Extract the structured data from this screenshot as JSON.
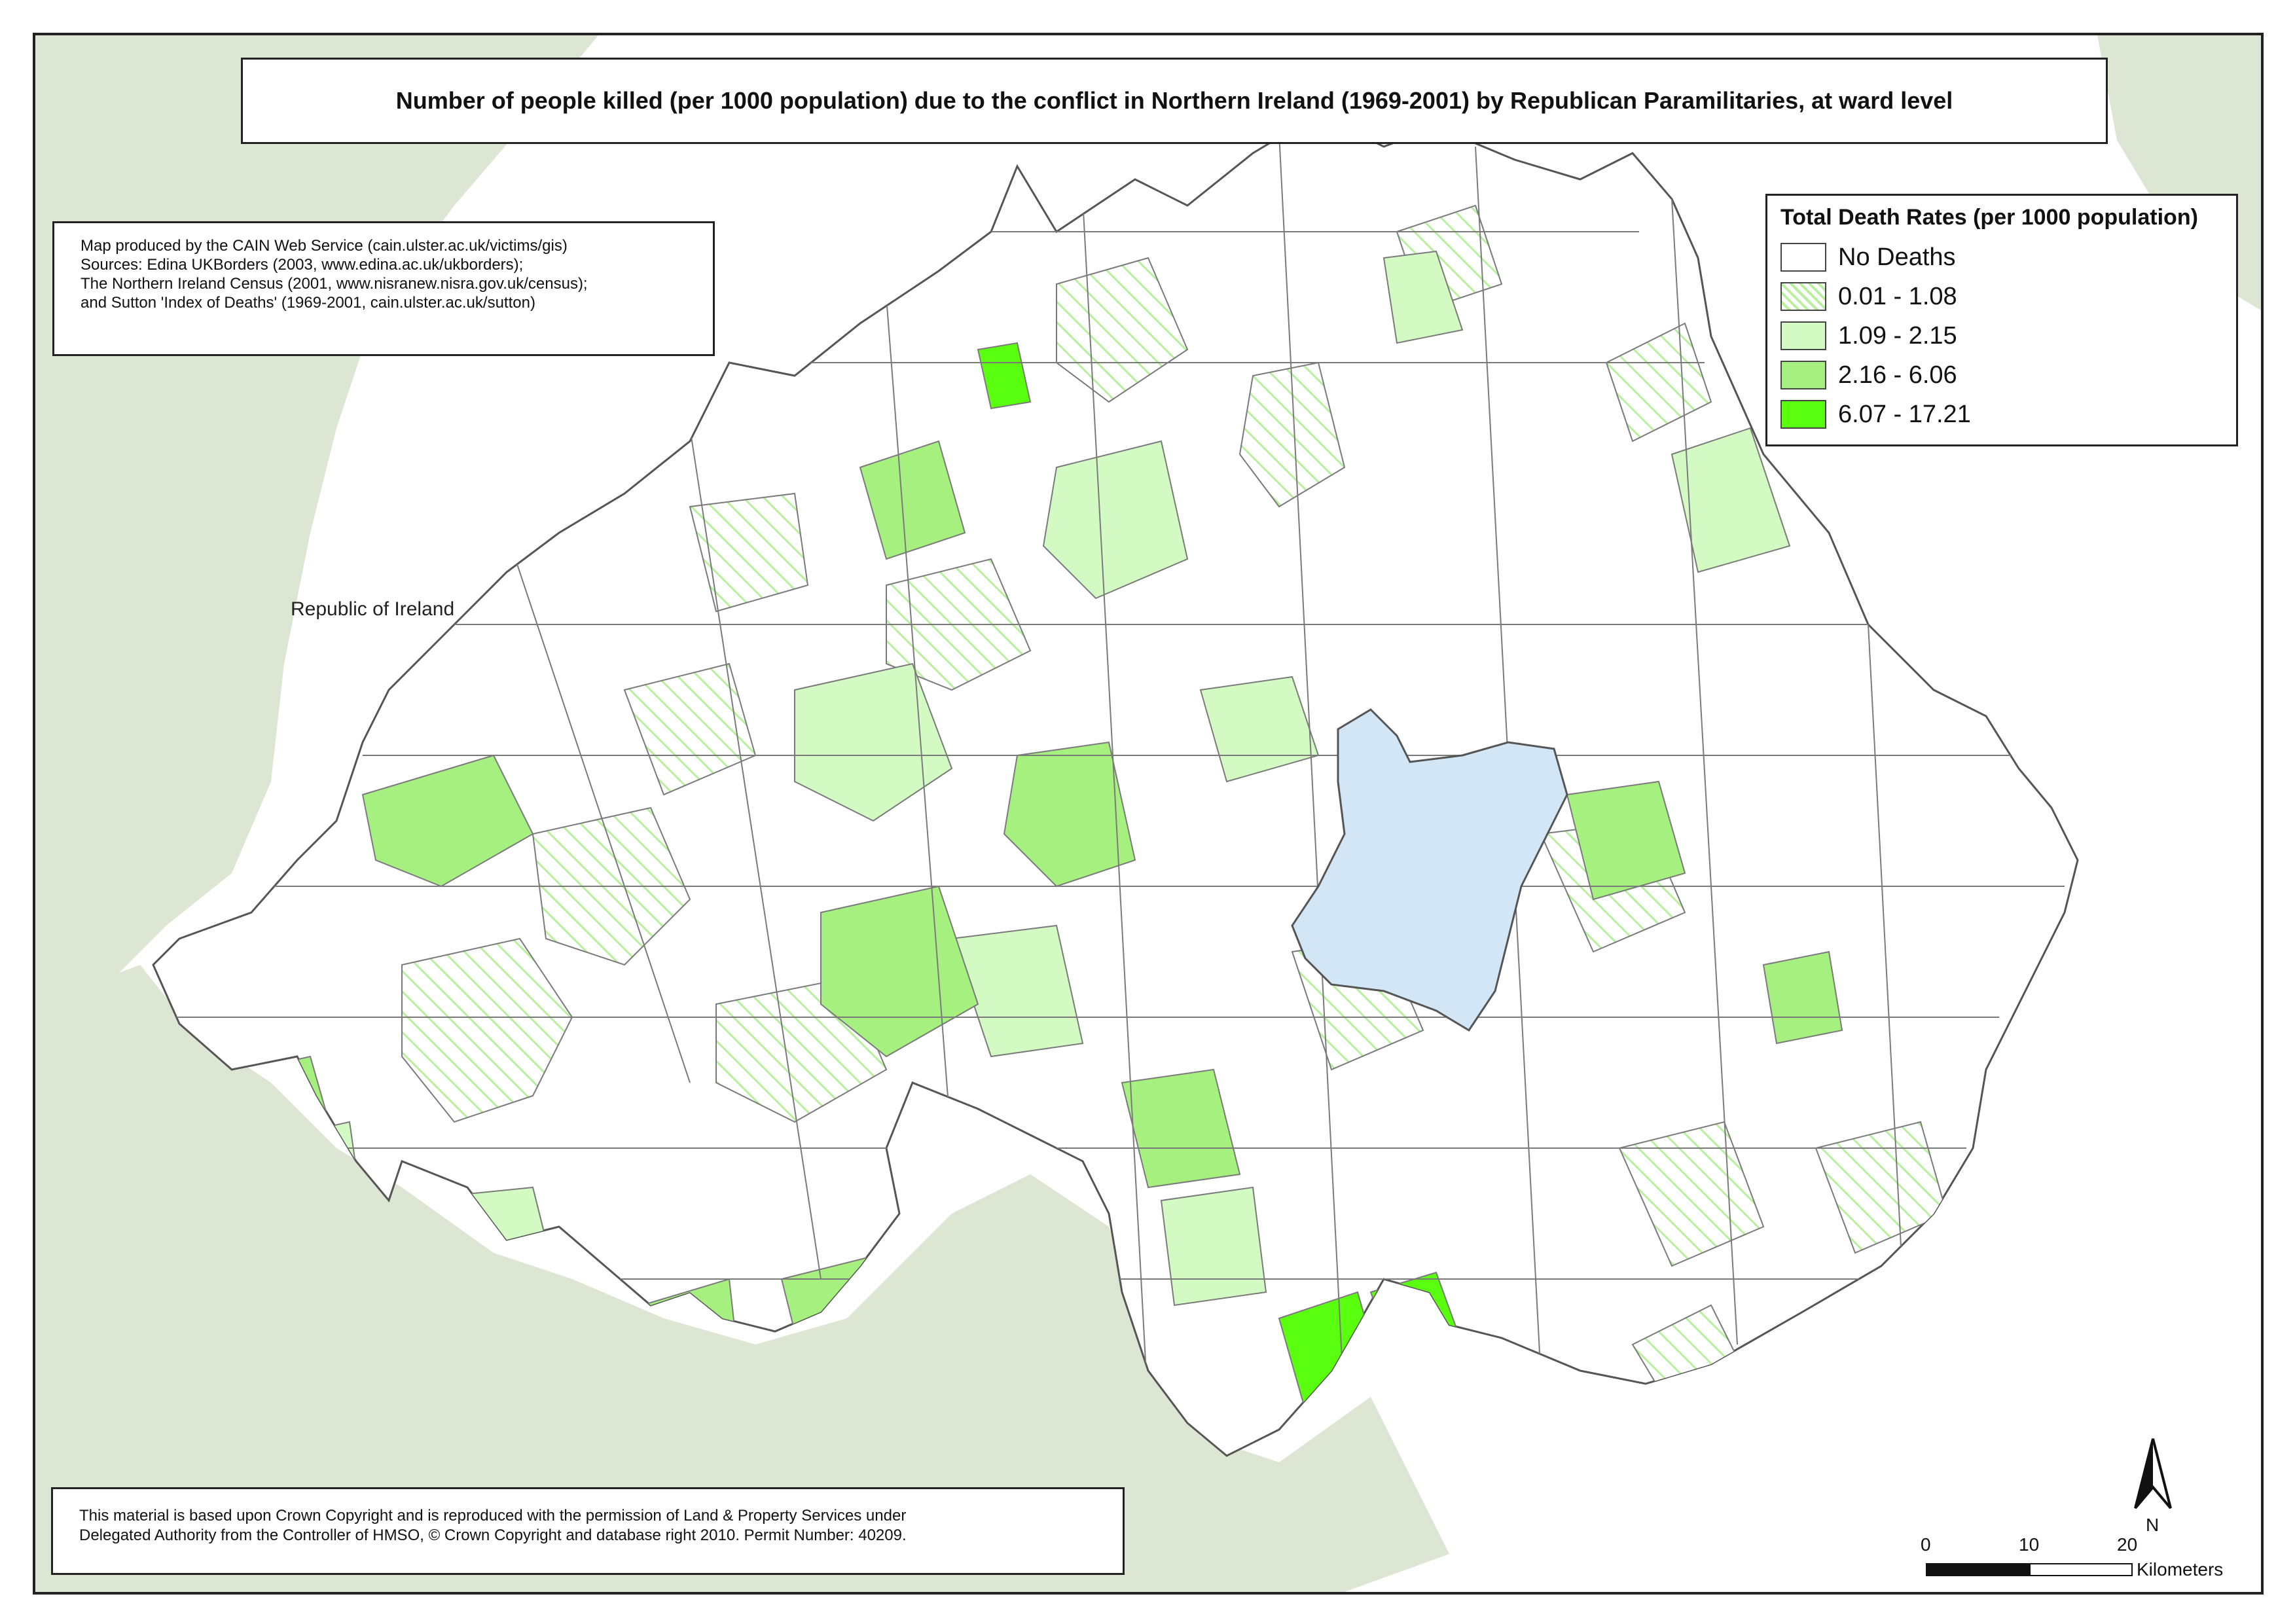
{
  "title": "Number of people killed (per 1000 population) due to the conflict in Northern Ireland (1969-2001) by Republican Paramilitaries, at ward level",
  "credits": [
    "Map produced by the CAIN Web Service (cain.ulster.ac.uk/victims/gis)",
    "Sources: Edina UKBorders (2003, www.edina.ac.uk/ukborders);",
    "The Northern Ireland Census (2001, www.nisranew.nisra.gov.uk/census);",
    "and Sutton 'Index of Deaths' (1969-2001, cain.ulster.ac.uk/sutton)"
  ],
  "place_label": "Republic of Ireland",
  "legend": {
    "title": "Total Death Rates (per 1000 population)",
    "items": [
      {
        "label": "No Deaths",
        "color": "#ffffff",
        "pattern": "none"
      },
      {
        "label": "0.01 - 1.08",
        "color": "#b8f0a0",
        "pattern": "hatch"
      },
      {
        "label": "1.09 - 2.15",
        "color": "#d4fac4",
        "pattern": "solid"
      },
      {
        "label": "2.16 - 6.06",
        "color": "#a6f080",
        "pattern": "solid"
      },
      {
        "label": "6.07 - 17.21",
        "color": "#5aff10",
        "pattern": "solid"
      }
    ]
  },
  "copyright": [
    "This material is based upon Crown Copyright and is reproduced with the permission of Land & Property Services under",
    "Delegated Authority from the Controller of HMSO, © Crown Copyright and database right 2010. Permit Number: 40209."
  ],
  "north_label": "N",
  "scale": {
    "ticks": [
      "0",
      "10",
      "20"
    ],
    "unit": "Kilometers"
  },
  "colors": {
    "land_context": "#dce6d2",
    "lough": "#d2e6f5",
    "border": "#666666"
  }
}
